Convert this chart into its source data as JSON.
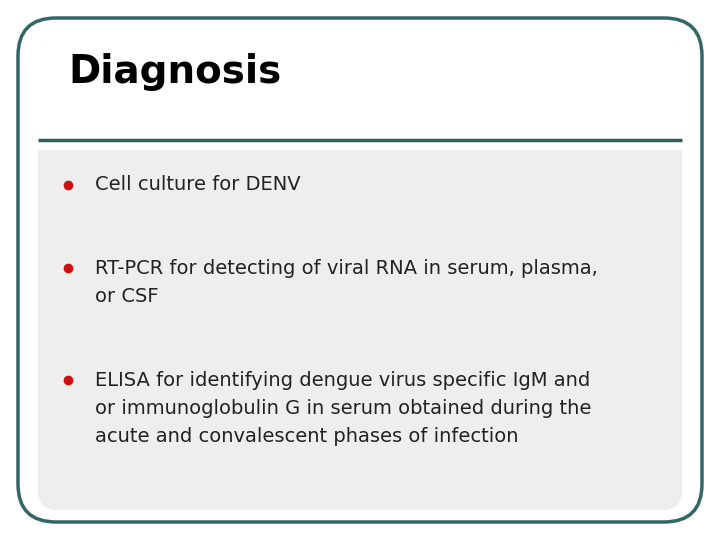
{
  "title": "Diagnosis",
  "title_fontsize": 28,
  "title_color": "#000000",
  "title_fontweight": "bold",
  "separator_color": "#2e6060",
  "outer_bg": "#ffffff",
  "inner_bg": "#eeeeee",
  "bullet_color": "#cc1111",
  "text_color": "#222222",
  "text_fontsize": 14,
  "border_color": "#336666",
  "border_linewidth": 2.5,
  "bullet_lines": [
    [
      "Cell culture for DENV"
    ],
    [
      "RT-PCR for detecting of viral RNA in serum, plasma,",
      "or CSF"
    ],
    [
      "ELISA for identifying dengue virus specific IgM and",
      "or immunoglobulin G in serum obtained during the",
      "acute and convalescent phases of infection"
    ]
  ],
  "fig_width": 7.2,
  "fig_height": 5.4,
  "dpi": 100
}
